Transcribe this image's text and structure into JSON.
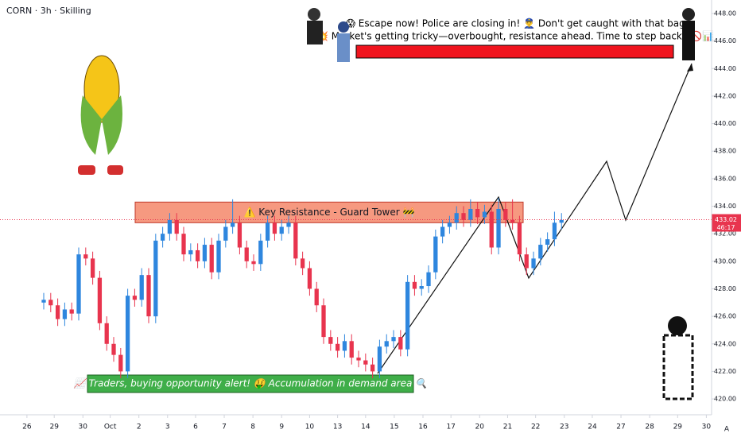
{
  "header": "CORN · 3h · Skilling",
  "chart_data": {
    "type": "candlestick",
    "up_color": "#2e86de",
    "down_color": "#e8344e",
    "xlim": [
      -6.25,
      95.45
    ],
    "ylim": [
      418.85,
      448.98
    ],
    "xticks": [
      {
        "value": -2.4,
        "label": "26"
      },
      {
        "value": 1.5,
        "label": "29"
      },
      {
        "value": 5.6,
        "label": "30"
      },
      {
        "value": 9.5,
        "label": "Oct"
      },
      {
        "value": 13.6,
        "label": "2"
      },
      {
        "value": 17.7,
        "label": "3"
      },
      {
        "value": 21.7,
        "label": "6"
      },
      {
        "value": 25.8,
        "label": "7"
      },
      {
        "value": 29.9,
        "label": "8"
      },
      {
        "value": 34.0,
        "label": "9"
      },
      {
        "value": 38.0,
        "label": "10"
      },
      {
        "value": 42.0,
        "label": "13"
      },
      {
        "value": 46.0,
        "label": "14"
      },
      {
        "value": 50.1,
        "label": "15"
      },
      {
        "value": 54.2,
        "label": "16"
      },
      {
        "value": 58.2,
        "label": "17"
      },
      {
        "value": 62.3,
        "label": "20"
      },
      {
        "value": 66.3,
        "label": "21"
      },
      {
        "value": 70.3,
        "label": "22"
      },
      {
        "value": 74.4,
        "label": "23"
      },
      {
        "value": 78.4,
        "label": "24"
      },
      {
        "value": 82.5,
        "label": "27"
      },
      {
        "value": 86.6,
        "label": "28"
      },
      {
        "value": 90.6,
        "label": "29"
      },
      {
        "value": 94.7,
        "label": "30"
      }
    ],
    "yticks": [
      {
        "value": 420,
        "label": "420.00"
      },
      {
        "value": 422,
        "label": "422.00"
      },
      {
        "value": 424,
        "label": "424.00"
      },
      {
        "value": 426,
        "label": "426.00"
      },
      {
        "value": 428,
        "label": "428.00"
      },
      {
        "value": 430,
        "label": "430.00"
      },
      {
        "value": 432,
        "label": "432.00"
      },
      {
        "value": 434,
        "label": "434.00"
      },
      {
        "value": 436,
        "label": "436.00"
      },
      {
        "value": 438,
        "label": "438.00"
      },
      {
        "value": 440,
        "label": "440.00"
      },
      {
        "value": 442,
        "label": "442.00"
      },
      {
        "value": 444,
        "label": "444.00"
      },
      {
        "value": 446,
        "label": "446.00"
      },
      {
        "value": 448,
        "label": "448.00"
      }
    ],
    "open": [
      427.0,
      427.2,
      426.8,
      425.8,
      426.5,
      426.2,
      430.5,
      430.2,
      428.8,
      425.5,
      424.0,
      423.2,
      422.0,
      427.5,
      427.2,
      429.0,
      426.0,
      431.5,
      432.0,
      433.0,
      432.0,
      430.5,
      430.8,
      430.0,
      431.2,
      429.2,
      431.5,
      432.5,
      432.8,
      431.0,
      430.0,
      429.8,
      431.5,
      432.8,
      432.0,
      432.5,
      432.8,
      430.2,
      429.5,
      428.0,
      426.8,
      424.5,
      424.0,
      423.5,
      424.2,
      423.0,
      422.8,
      422.5,
      422.0,
      423.8,
      424.2,
      424.5,
      423.6,
      428.5,
      428.0,
      428.2,
      429.2,
      431.8,
      432.5,
      432.8,
      433.5,
      433.0,
      433.8,
      433.2,
      433.6,
      431.0,
      433.8,
      433.0,
      432.8,
      430.5,
      429.5,
      430.2,
      431.2,
      431.6,
      432.8
    ],
    "high": [
      427.7,
      427.7,
      427.3,
      427.0,
      427.0,
      431.0,
      431.0,
      430.7,
      429.3,
      426.0,
      424.5,
      423.7,
      428.0,
      428.0,
      429.5,
      429.5,
      432.0,
      432.5,
      433.5,
      433.5,
      432.5,
      431.3,
      431.3,
      431.7,
      431.7,
      432.0,
      433.0,
      434.5,
      433.3,
      431.5,
      430.5,
      432.0,
      433.3,
      433.3,
      433.0,
      433.3,
      433.3,
      430.7,
      430.0,
      428.5,
      427.3,
      425.0,
      424.5,
      424.7,
      424.7,
      423.5,
      423.3,
      423.0,
      424.3,
      424.7,
      425.0,
      425.0,
      429.0,
      429.0,
      428.7,
      429.7,
      432.3,
      433.0,
      433.3,
      434.0,
      434.0,
      434.5,
      434.3,
      434.1,
      434.1,
      434.6,
      434.3,
      434.5,
      433.3,
      431.0,
      430.7,
      431.7,
      432.1,
      433.6,
      433.5
    ],
    "low": [
      426.5,
      426.3,
      425.3,
      425.3,
      425.7,
      425.7,
      429.7,
      428.3,
      425.0,
      423.5,
      422.7,
      421.5,
      421.5,
      426.7,
      426.7,
      425.5,
      425.5,
      431.0,
      431.5,
      431.5,
      430.0,
      430.0,
      429.5,
      429.5,
      428.7,
      428.7,
      431.0,
      432.0,
      430.5,
      429.5,
      429.3,
      429.3,
      431.0,
      431.5,
      431.5,
      432.0,
      429.7,
      429.0,
      427.5,
      426.3,
      424.0,
      423.5,
      423.0,
      423.0,
      422.5,
      422.3,
      422.0,
      421.5,
      421.5,
      423.3,
      423.7,
      423.1,
      423.1,
      427.5,
      427.5,
      427.7,
      428.7,
      431.3,
      432.0,
      432.3,
      432.5,
      432.5,
      432.7,
      432.7,
      430.5,
      430.5,
      432.5,
      432.3,
      430.0,
      429.0,
      429.0,
      429.7,
      430.7,
      431.1,
      432.3
    ],
    "close": [
      427.2,
      426.8,
      425.8,
      426.5,
      426.2,
      430.5,
      430.2,
      428.8,
      425.5,
      424.0,
      423.2,
      422.0,
      427.5,
      427.2,
      429.0,
      426.0,
      431.5,
      432.0,
      433.0,
      432.0,
      430.5,
      430.8,
      430.0,
      431.2,
      429.2,
      431.5,
      432.5,
      432.8,
      431.0,
      430.0,
      429.8,
      431.5,
      432.8,
      432.0,
      432.5,
      432.8,
      430.2,
      429.5,
      428.0,
      426.8,
      424.5,
      424.0,
      423.5,
      424.2,
      423.0,
      422.8,
      422.5,
      422.0,
      423.8,
      424.2,
      424.5,
      423.6,
      428.5,
      428.0,
      428.2,
      429.2,
      431.8,
      432.5,
      432.8,
      433.5,
      433.0,
      433.8,
      433.2,
      433.6,
      431.0,
      433.8,
      433.0,
      432.8,
      430.5,
      429.5,
      430.2,
      431.2,
      431.6,
      432.8,
      433.0
    ],
    "last_price": {
      "value": 433.02,
      "label": "433.02"
    },
    "countdown": "46:17",
    "scale_mode": "A",
    "resistance_zone": {
      "low": 432.8,
      "high": 434.3,
      "label": "⚠️ Key Resistance - Guard Tower 🚧"
    },
    "demand_label": "\"📈 Traders, buying opportunity alert! 🤑 Accumulation in demand area 🔍\"",
    "annotations": [
      "😱 Escape now! Police are closing in! 👮‍♂️ Don't get caught with that bag.",
      "💥 Market's getting tricky—overbought, resistance ahead. Time to step back? 🚫📊"
    ]
  }
}
